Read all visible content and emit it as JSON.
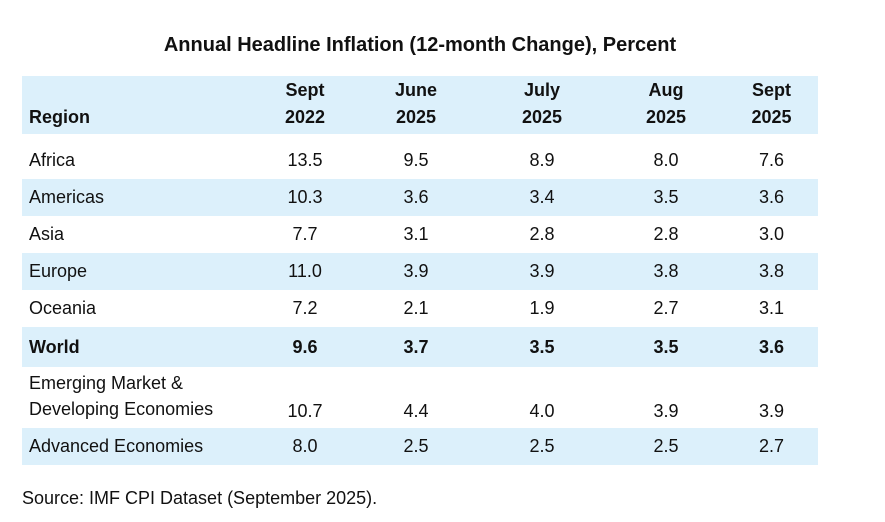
{
  "title": "Annual Headline Inflation (12-month Change), Percent",
  "table": {
    "header": [
      [
        "Region"
      ],
      [
        "Sept",
        "2022"
      ],
      [
        "June",
        "2025"
      ],
      [
        "July",
        "2025"
      ],
      [
        "Aug",
        "2025"
      ],
      [
        "Sept",
        "2025"
      ]
    ],
    "rows": [
      [
        "Africa",
        "13.5",
        "9.5",
        "8.9",
        "8.0",
        "7.6"
      ],
      [
        "Americas",
        "10.3",
        "3.6",
        "3.4",
        "3.5",
        "3.6"
      ],
      [
        "Asia",
        "7.7",
        "3.1",
        "2.8",
        "2.8",
        "3.0"
      ],
      [
        "Europe",
        "11.0",
        "3.9",
        "3.9",
        "3.8",
        "3.8"
      ],
      [
        "Oceania",
        "7.2",
        "2.1",
        "1.9",
        "2.7",
        "3.1"
      ],
      [
        "World",
        "9.6",
        "3.7",
        "3.5",
        "3.5",
        "3.6"
      ],
      [
        "Emerging Market & Developing Economies",
        "10.7",
        "4.4",
        "4.0",
        "3.9",
        "3.9"
      ],
      [
        "Advanced Economies",
        "8.0",
        "2.5",
        "2.5",
        "2.5",
        "2.7"
      ]
    ]
  },
  "source": "Source: IMF CPI Dataset (September 2025)."
}
